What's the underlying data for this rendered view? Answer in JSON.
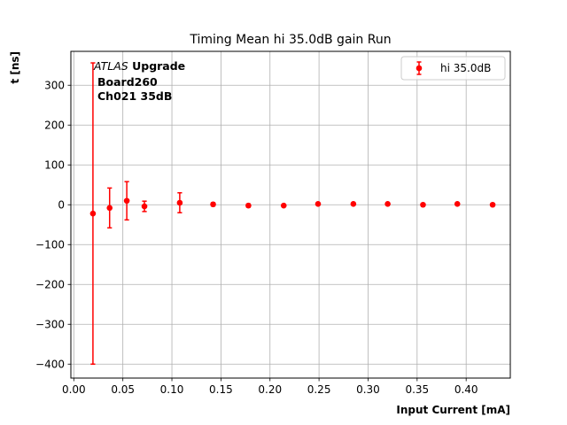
{
  "chart_data": {
    "type": "scatter",
    "title": "Timing Mean hi 35.0dB gain Run",
    "xlabel": "Input Current [mA]",
    "ylabel": "t [ns]",
    "xlim": [
      -0.003,
      0.445
    ],
    "ylim": [
      -435,
      385
    ],
    "xticks": [
      "0.00",
      "0.05",
      "0.10",
      "0.15",
      "0.20",
      "0.25",
      "0.30",
      "0.35",
      "0.40"
    ],
    "xtick_values": [
      0.0,
      0.05,
      0.1,
      0.15,
      0.2,
      0.25,
      0.3,
      0.35,
      0.4
    ],
    "yticks": [
      "−400",
      "−300",
      "−200",
      "−100",
      "0",
      "100",
      "200",
      "300"
    ],
    "ytick_values": [
      -400,
      -300,
      -200,
      -100,
      0,
      100,
      200,
      300
    ],
    "grid": true,
    "legend_position": "top-right",
    "annotation": {
      "atlas": "ATLAS",
      "upgrade": "Upgrade",
      "board": "Board260",
      "channel": "Ch021 35dB"
    },
    "series": [
      {
        "name": "hi 35.0dB",
        "color": "#ff0000",
        "points": [
          {
            "x": 0.0195,
            "y": -22,
            "yerr": 378
          },
          {
            "x": 0.0365,
            "y": -8,
            "yerr": 50
          },
          {
            "x": 0.054,
            "y": 10,
            "yerr": 48
          },
          {
            "x": 0.072,
            "y": -4,
            "yerr": 13
          },
          {
            "x": 0.108,
            "y": 5,
            "yerr": 25
          },
          {
            "x": 0.142,
            "y": 1,
            "yerr": 4
          },
          {
            "x": 0.178,
            "y": -2,
            "yerr": 4
          },
          {
            "x": 0.214,
            "y": -2,
            "yerr": 2
          },
          {
            "x": 0.249,
            "y": 2,
            "yerr": 2
          },
          {
            "x": 0.285,
            "y": 2,
            "yerr": 2
          },
          {
            "x": 0.32,
            "y": 2,
            "yerr": 2
          },
          {
            "x": 0.356,
            "y": 0,
            "yerr": 2
          },
          {
            "x": 0.391,
            "y": 2,
            "yerr": 2
          },
          {
            "x": 0.427,
            "y": 0,
            "yerr": 2
          }
        ]
      }
    ]
  }
}
